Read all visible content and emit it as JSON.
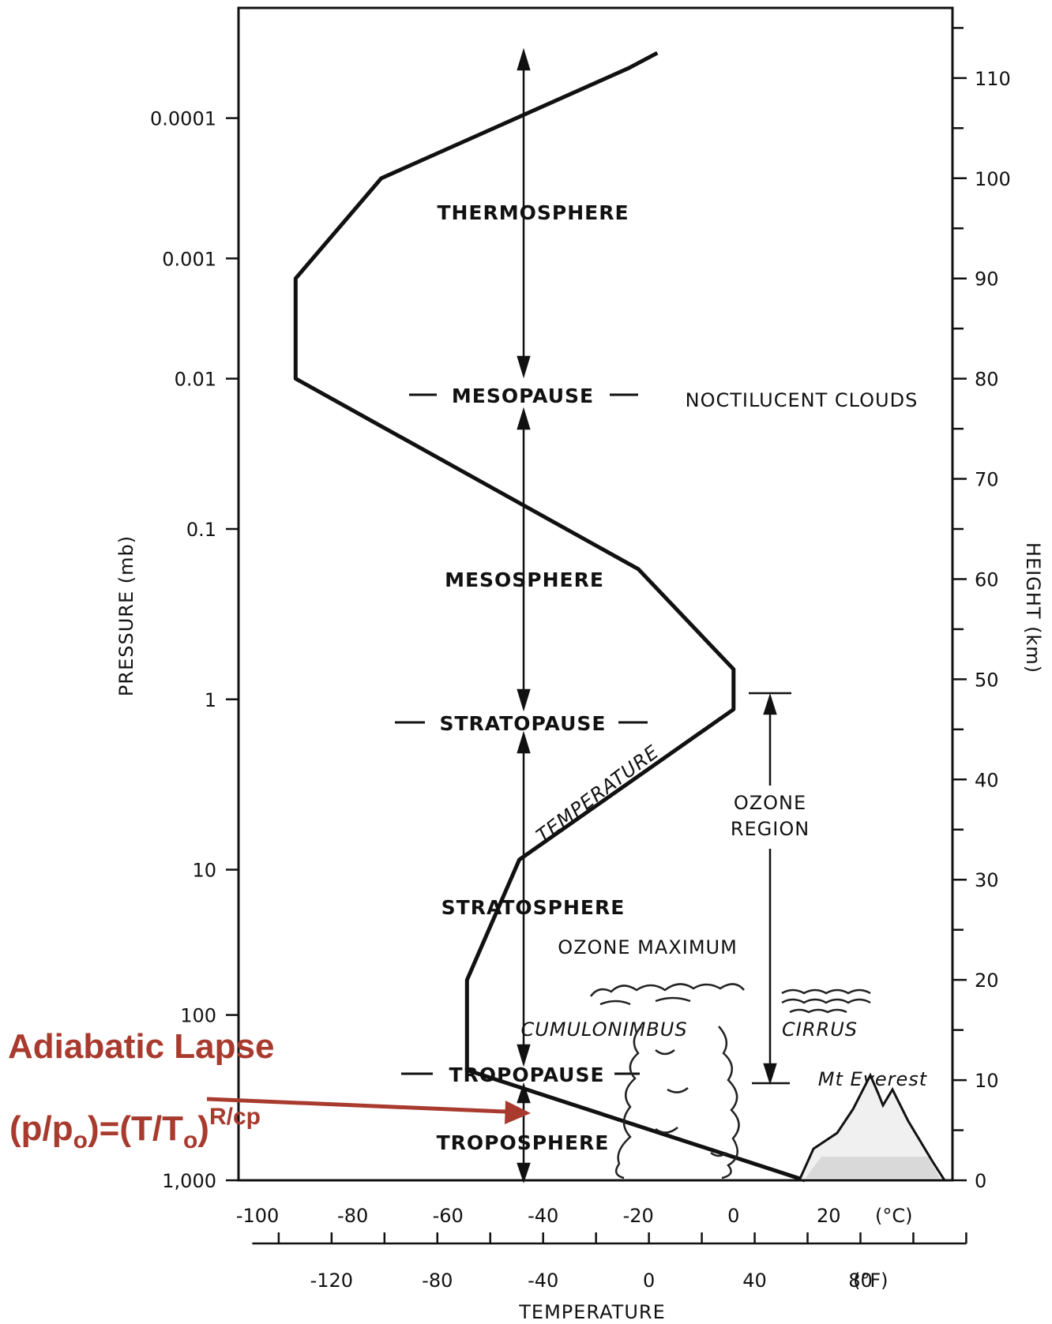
{
  "chart_data": {
    "type": "line",
    "xlabel": "TEMPERATURE",
    "ylabel_left": "PRESSURE (mb)",
    "ylabel_right": "HEIGHT (km)",
    "x_unit_c": "(°C)",
    "x_unit_f": "(°F)",
    "x_ticks_c": [
      "-100",
      "-80",
      "-60",
      "-40",
      "-20",
      "0",
      "20"
    ],
    "x_ticks_f": [
      "-120",
      "-80",
      "-40",
      "0",
      "40",
      "80"
    ],
    "pressure_ticks": [
      "0.0001",
      "0.001",
      "0.01",
      "0.1",
      "1",
      "10",
      "100",
      "1,000"
    ],
    "height_ticks": [
      "0",
      "10",
      "20",
      "30",
      "40",
      "50",
      "60",
      "70",
      "80",
      "90",
      "100",
      "110"
    ],
    "xlim_c": [
      -104,
      46
    ],
    "height_range_km": [
      0,
      117
    ],
    "series": [
      {
        "values": [
          {
            "t": 15,
            "h": 0
          },
          {
            "t": -56,
            "h": 11
          },
          {
            "t": -56,
            "h": 20
          },
          {
            "t": -45,
            "h": 32
          },
          {
            "t": 0,
            "h": 47
          },
          {
            "t": 0,
            "h": 51
          },
          {
            "t": -20,
            "h": 61
          },
          {
            "t": -92,
            "h": 80
          },
          {
            "t": -92,
            "h": 90
          },
          {
            "t": -74,
            "h": 100
          },
          {
            "t": -22,
            "h": 111
          },
          {
            "t": -16,
            "h": 112.5
          }
        ]
      }
    ],
    "layers": {
      "thermosphere": "THERMOSPHERE",
      "mesopause": "MESOPAUSE",
      "mesosphere": "MESOSPHERE",
      "stratopause": "STRATOPAUSE",
      "stratosphere": "STRATOSPHERE",
      "tropopause": "TROPOPAUSE",
      "troposphere": "TROPOSPHERE"
    },
    "annotations": {
      "noctilucent": "NOCTILUCENT CLOUDS",
      "temperature_curve": "TEMPERATURE",
      "ozone_region_1": "OZONE",
      "ozone_region_2": "REGION",
      "ozone_max": "OZONE MAXIMUM",
      "cumulonimbus": "CUMULONIMBUS",
      "cirrus": "CIRRUS",
      "everest": "Mt Everest"
    }
  },
  "overlay": {
    "title": "Adiabatic Lapse",
    "formula": {
      "open": "(p/p",
      "sub1": "o",
      "mid": ")=(T/T",
      "sub2": "o",
      "close": ")",
      "exponent": "R/cp"
    },
    "color": "#a83a2e"
  }
}
